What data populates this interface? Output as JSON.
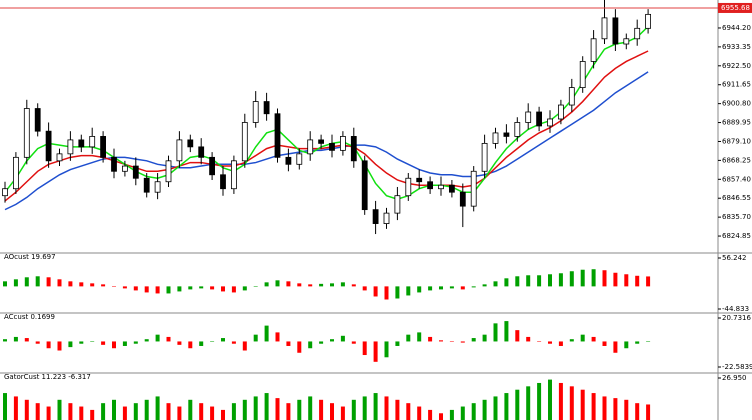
{
  "chart_data": [
    {
      "type": "candlestick",
      "current_price": 6955.68,
      "ylim": [
        6815.7,
        6959.1
      ],
      "yticks": [
        {
          "value": 6944.2,
          "label": "6944.20"
        },
        {
          "value": 6933.35,
          "label": "6933.35"
        },
        {
          "value": 6922.5,
          "label": "6922.50"
        },
        {
          "value": 6911.65,
          "label": "6911.65"
        },
        {
          "value": 6900.8,
          "label": "6900.80"
        },
        {
          "value": 6889.95,
          "label": "6889.95"
        },
        {
          "value": 6879.1,
          "label": "6879.10"
        },
        {
          "value": 6868.25,
          "label": "6868.25"
        },
        {
          "value": 6857.4,
          "label": "6857.40"
        },
        {
          "value": 6846.55,
          "label": "6846.55"
        },
        {
          "value": 6835.7,
          "label": "6835.70"
        },
        {
          "value": 6824.85,
          "label": "6824.85"
        }
      ],
      "open": [
        6848,
        6852,
        6870,
        6898,
        6885,
        6868,
        6872,
        6880,
        6876,
        6882,
        6870,
        6862,
        6865,
        6858,
        6850,
        6856,
        6868,
        6880,
        6876,
        6870,
        6860,
        6852,
        6868,
        6890,
        6902,
        6895,
        6870,
        6866,
        6872,
        6880,
        6878,
        6874,
        6882,
        6868,
        6840,
        6832,
        6838,
        6848,
        6858,
        6856,
        6852,
        6854,
        6850,
        6842,
        6862,
        6878,
        6884,
        6882,
        6890,
        6896,
        6888,
        6892,
        6900,
        6910,
        6925,
        6938,
        6950,
        6935,
        6938,
        6944
      ],
      "high": [
        6856,
        6873,
        6903,
        6901,
        6890,
        6875,
        6885,
        6883,
        6887,
        6885,
        6875,
        6868,
        6870,
        6861,
        6861,
        6871,
        6885,
        6883,
        6881,
        6873,
        6865,
        6871,
        6895,
        6908,
        6907,
        6898,
        6875,
        6875,
        6885,
        6883,
        6883,
        6885,
        6887,
        6871,
        6845,
        6841,
        6853,
        6861,
        6863,
        6859,
        6859,
        6857,
        6855,
        6865,
        6883,
        6887,
        6889,
        6893,
        6901,
        6899,
        6897,
        6903,
        6915,
        6928,
        6943,
        6962,
        6955,
        6941,
        6949,
        6955
      ],
      "low": [
        6844,
        6849,
        6866,
        6882,
        6864,
        6865,
        6868,
        6873,
        6872,
        6867,
        6858,
        6859,
        6854,
        6847,
        6846,
        6853,
        6864,
        6873,
        6866,
        6857,
        6848,
        6849,
        6864,
        6887,
        6891,
        6867,
        6862,
        6863,
        6868,
        6875,
        6870,
        6871,
        6864,
        6837,
        6826,
        6829,
        6834,
        6845,
        6852,
        6849,
        6848,
        6847,
        6830,
        6839,
        6858,
        6875,
        6878,
        6879,
        6886,
        6885,
        6884,
        6889,
        6896,
        6907,
        6921,
        6935,
        6931,
        6932,
        6934,
        6941
      ],
      "close": [
        6852,
        6870,
        6898,
        6885,
        6868,
        6872,
        6880,
        6876,
        6882,
        6870,
        6862,
        6865,
        6858,
        6850,
        6856,
        6868,
        6880,
        6876,
        6870,
        6860,
        6852,
        6868,
        6890,
        6902,
        6895,
        6870,
        6866,
        6872,
        6880,
        6878,
        6874,
        6882,
        6868,
        6840,
        6832,
        6838,
        6848,
        6858,
        6856,
        6852,
        6854,
        6850,
        6842,
        6862,
        6878,
        6884,
        6882,
        6890,
        6896,
        6888,
        6892,
        6900,
        6910,
        6925,
        6938,
        6950,
        6935,
        6938,
        6944,
        6952
      ],
      "series": [
        {
          "color": "#1f4fcf",
          "values": [
            6840,
            6843,
            6847,
            6852,
            6856,
            6860,
            6863,
            6865,
            6867,
            6869,
            6870,
            6870,
            6869,
            6868,
            6866,
            6865,
            6864,
            6864,
            6865,
            6866,
            6866,
            6866,
            6866,
            6867,
            6869,
            6871,
            6872,
            6873,
            6874,
            6874,
            6875,
            6876,
            6877,
            6877,
            6876,
            6873,
            6869,
            6866,
            6863,
            6861,
            6860,
            6860,
            6859,
            6859,
            6860,
            6862,
            6865,
            6869,
            6873,
            6877,
            6881,
            6885,
            6889,
            6893,
            6897,
            6902,
            6907,
            6911,
            6915,
            6919
          ]
        },
        {
          "color": "#e01010",
          "values": [
            6845,
            6850,
            6856,
            6862,
            6866,
            6868,
            6870,
            6871,
            6871,
            6870,
            6868,
            6866,
            6864,
            6862,
            6862,
            6863,
            6865,
            6867,
            6867,
            6866,
            6865,
            6865,
            6867,
            6871,
            6875,
            6877,
            6876,
            6875,
            6875,
            6875,
            6876,
            6877,
            6876,
            6872,
            6866,
            6861,
            6857,
            6855,
            6854,
            6854,
            6854,
            6854,
            6853,
            6854,
            6858,
            6864,
            6870,
            6875,
            6880,
            6884,
            6887,
            6891,
            6896,
            6902,
            6909,
            6916,
            6921,
            6925,
            6928,
            6931
          ]
        },
        {
          "color": "#10e010",
          "values": [
            6850,
            6858,
            6868,
            6875,
            6878,
            6877,
            6876,
            6876,
            6876,
            6874,
            6870,
            6866,
            6862,
            6859,
            6858,
            6860,
            6865,
            6870,
            6871,
            6869,
            6864,
            6862,
            6866,
            6876,
            6884,
            6886,
            6880,
            6874,
            6872,
            6876,
            6878,
            6879,
            6876,
            6866,
            6855,
            6848,
            6846,
            6848,
            6852,
            6854,
            6854,
            6853,
            6850,
            6850,
            6858,
            6867,
            6875,
            6881,
            6886,
            6889,
            6891,
            6896,
            6903,
            6913,
            6923,
            6932,
            6935,
            6936,
            6939,
            6945
          ]
        }
      ]
    },
    {
      "type": "bar",
      "title": "AOcust 19.697",
      "up_color": "#00a000",
      "down_color": "#ff0000",
      "ylim": [
        -44.833,
        56.242
      ],
      "yticks": [
        -44.833,
        56.242
      ],
      "values": [
        10,
        14,
        18,
        20,
        18,
        14,
        10,
        8,
        6,
        4,
        0,
        -4,
        -8,
        -12,
        -14,
        -14,
        -10,
        -6,
        -4,
        -6,
        -10,
        -12,
        -8,
        0,
        8,
        12,
        10,
        6,
        4,
        5,
        6,
        8,
        4,
        -8,
        -20,
        -26,
        -24,
        -18,
        -12,
        -8,
        -6,
        -4,
        -6,
        -2,
        4,
        10,
        16,
        20,
        22,
        22,
        24,
        26,
        30,
        33,
        34,
        32,
        27,
        24,
        21,
        19.697
      ]
    },
    {
      "type": "bar",
      "title": "ACcust 0.1699",
      "up_color": "#00a000",
      "down_color": "#ff0000",
      "ylim": [
        -22.5839,
        20.7316
      ],
      "yticks": [
        -22.5839,
        20.7316
      ],
      "values": [
        2,
        4,
        3,
        -2,
        -6,
        -8,
        -5,
        -2,
        0,
        -3,
        -6,
        -4,
        -2,
        2,
        6,
        4,
        -3,
        -6,
        -4,
        0,
        3,
        -2,
        -8,
        6,
        14,
        8,
        -4,
        -10,
        -6,
        -2,
        2,
        5,
        -2,
        -12,
        -18,
        -14,
        -4,
        6,
        8,
        4,
        1,
        0,
        -1,
        3,
        6,
        16,
        18,
        10,
        4,
        0,
        -2,
        -4,
        2,
        6,
        4,
        -4,
        -10,
        -6,
        -2,
        0.1699
      ]
    },
    {
      "type": "bar",
      "title": "GatorCust 11.223 -6.317",
      "up_color": "#00a000",
      "down_color": "#ff0000",
      "ylim": [
        2,
        26.95
      ],
      "yticks": [
        {
          "value": 26.95,
          "label": "26.950"
        }
      ],
      "values": [
        18,
        16,
        14,
        12,
        10,
        14,
        12,
        10,
        8,
        12,
        14,
        10,
        12,
        14,
        16,
        12,
        10,
        14,
        12,
        10,
        8,
        12,
        14,
        16,
        18,
        15,
        12,
        14,
        16,
        14,
        12,
        10,
        14,
        16,
        18,
        16,
        14,
        12,
        10,
        8,
        6,
        8,
        10,
        12,
        14,
        16,
        18,
        20,
        22,
        24,
        26,
        24,
        22,
        20,
        18,
        16,
        15,
        14,
        12,
        11.223
      ]
    }
  ]
}
